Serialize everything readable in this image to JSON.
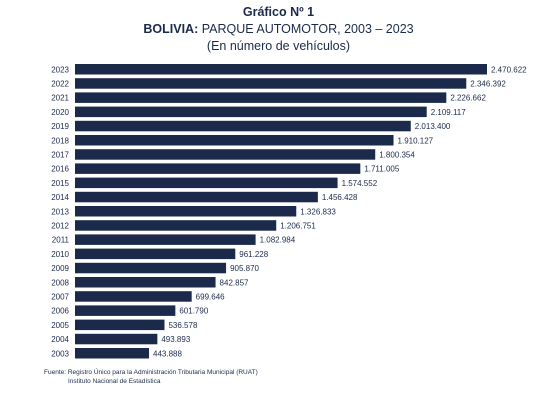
{
  "header": {
    "figure_label": "Gráfico Nº 1",
    "title_bold": "BOLIVIA:",
    "title_rest": " PARQUE AUTOMOTOR, 2003 – 2023",
    "subtitle": "(En número de vehículos)"
  },
  "chart_data": {
    "type": "bar",
    "orientation": "horizontal",
    "title": "BOLIVIA: PARQUE AUTOMOTOR, 2003 – 2023",
    "subtitle": "(En número de vehículos)",
    "categories": [
      "2023",
      "2022",
      "2021",
      "2020",
      "2019",
      "2018",
      "2017",
      "2016",
      "2015",
      "2014",
      "2013",
      "2012",
      "2011",
      "2010",
      "2009",
      "2008",
      "2007",
      "2006",
      "2005",
      "2004",
      "2003"
    ],
    "values": [
      2470622,
      2346392,
      2226662,
      2109117,
      2013400,
      1910127,
      1800354,
      1711005,
      1574552,
      1456428,
      1326833,
      1206751,
      1082984,
      961228,
      905870,
      842857,
      699646,
      601790,
      536578,
      493893,
      443888
    ],
    "value_labels": [
      "2.470.622",
      "2.346.392",
      "2.226.662",
      "2.109.117",
      "2.013.400",
      "1.910.127",
      "1.800.354",
      "1.711.005",
      "1.574.552",
      "1.456.428",
      "1.326.833",
      "1.206.751",
      "1.082.984",
      "961.228",
      "905.870",
      "842.857",
      "699.646",
      "601.790",
      "536.578",
      "493.893",
      "443.888"
    ],
    "bar_color": "#1b2a4a",
    "grid": false,
    "legend": "none"
  },
  "source": {
    "line1": "Fuente: Registro Único para la Administración Tributaria Municipal (RUAT)",
    "line2": "Instituto Nacional de Estadística"
  }
}
